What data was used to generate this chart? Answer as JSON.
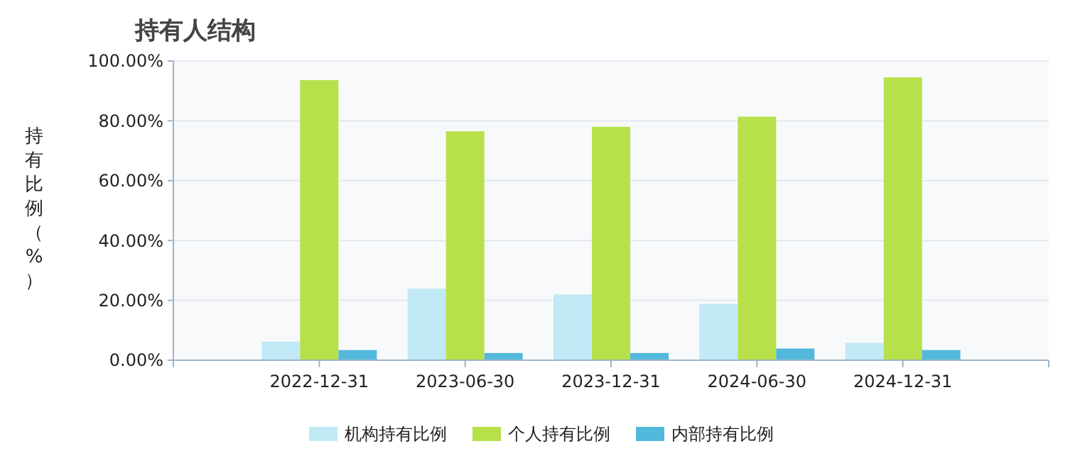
{
  "chart_data": {
    "type": "bar",
    "title": "持有人结构",
    "ylabel": "持有比例（%）",
    "categories": [
      "2022-12-31",
      "2023-06-30",
      "2023-12-31",
      "2024-06-30",
      "2024-12-31"
    ],
    "series": [
      {
        "name": "机构持有比例",
        "color": "#c2e9f6",
        "values": [
          6.2,
          23.9,
          22.0,
          18.8,
          5.8
        ]
      },
      {
        "name": "个人持有比例",
        "color": "#b6e14a",
        "values": [
          93.6,
          76.5,
          78.0,
          81.4,
          94.5
        ]
      },
      {
        "name": "内部持有比例",
        "color": "#52b8dc",
        "values": [
          3.4,
          2.4,
          2.4,
          3.9,
          3.4
        ]
      }
    ],
    "ylim": [
      0,
      100
    ],
    "yticks": [
      {
        "value": 0,
        "label": "0.00%"
      },
      {
        "value": 20,
        "label": "20.00%"
      },
      {
        "value": 40,
        "label": "40.00%"
      },
      {
        "value": 60,
        "label": "60.00%"
      },
      {
        "value": 80,
        "label": "80.00%"
      },
      {
        "value": 100,
        "label": "100.00%"
      }
    ],
    "grid": "y",
    "legend": "bottom"
  }
}
